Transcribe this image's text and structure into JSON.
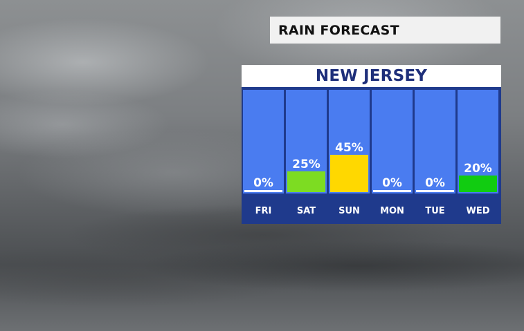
{
  "header": {
    "title": "RAIN FORECAST"
  },
  "region": "NEW JERSEY",
  "colors": {
    "panel_border": "#1f3a8c",
    "column": "#4a7cf0",
    "day_bar": "#1f3a8c",
    "zero_line": "#ffffff"
  },
  "chart_data": {
    "type": "bar",
    "title": "RAIN FORECAST",
    "subtitle": "NEW JERSEY",
    "categories": [
      "FRI",
      "SAT",
      "SUN",
      "MON",
      "TUE",
      "WED"
    ],
    "values": [
      0,
      25,
      45,
      0,
      0,
      20
    ],
    "value_labels": [
      "0%",
      "25%",
      "45%",
      "0%",
      "0%",
      "20%"
    ],
    "bar_colors": [
      "#ffffff",
      "#7ddc22",
      "#ffd800",
      "#ffffff",
      "#ffffff",
      "#11cc11"
    ],
    "ylim": [
      0,
      100
    ],
    "grid": false,
    "legend": "none"
  }
}
